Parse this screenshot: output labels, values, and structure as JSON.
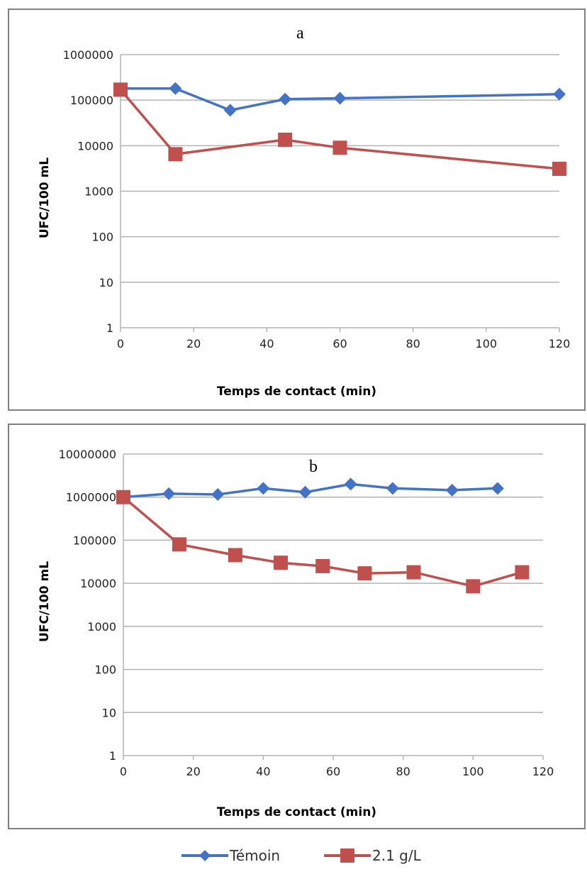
{
  "chart_data": [
    {
      "type": "line",
      "panel_label": "a",
      "title": "",
      "xlabel": "Temps de contact (min)",
      "ylabel": "UFC/100 mL",
      "y_scale": "log",
      "xlim": [
        0,
        120
      ],
      "ylim": [
        1,
        1000000
      ],
      "x_ticks": [
        "0",
        "20",
        "40",
        "60",
        "80",
        "100",
        "120"
      ],
      "y_ticks": [
        "1",
        "10",
        "100",
        "1000",
        "10000",
        "100000",
        "1000000"
      ],
      "grid": true,
      "series": [
        {
          "name": "Témoin",
          "color": "#4472C4",
          "marker": "diamond",
          "x": [
            0,
            15,
            30,
            45,
            60,
            120
          ],
          "y": [
            180000,
            180000,
            60000,
            105000,
            110000,
            135000
          ]
        },
        {
          "name": "2.1 g/L",
          "color": "#C0504D",
          "marker": "square",
          "x": [
            0,
            15,
            45,
            60,
            120
          ],
          "y": [
            170000,
            6500,
            13500,
            9000,
            3100
          ]
        }
      ]
    },
    {
      "type": "line",
      "panel_label": "b",
      "title": "",
      "xlabel": "Temps de contact (min)",
      "ylabel": "UFC/100 mL",
      "y_scale": "log",
      "xlim": [
        0,
        120
      ],
      "ylim": [
        1,
        10000000
      ],
      "x_ticks": [
        "0",
        "20",
        "40",
        "60",
        "80",
        "100",
        "120"
      ],
      "y_ticks": [
        "1",
        "10",
        "100",
        "1000",
        "10000",
        "100000",
        "1000000",
        "10000000"
      ],
      "grid": true,
      "series": [
        {
          "name": "Témoin",
          "color": "#4472C4",
          "marker": "diamond",
          "x": [
            0,
            13,
            27,
            40,
            52,
            65,
            77,
            94,
            107
          ],
          "y": [
            1000000,
            1200000,
            1150000,
            1600000,
            1300000,
            2000000,
            1600000,
            1450000,
            1600000
          ]
        },
        {
          "name": "2.1 g/L",
          "color": "#C0504D",
          "marker": "square",
          "x": [
            0,
            16,
            32,
            45,
            57,
            69,
            83,
            100,
            114
          ],
          "y": [
            1000000,
            80000,
            45000,
            30000,
            25000,
            17000,
            18000,
            8500,
            18000
          ]
        }
      ]
    }
  ],
  "legend": [
    {
      "name": "Témoin",
      "color": "#4472C4",
      "marker": "diamond"
    },
    {
      "name": "2.1 g/L",
      "color": "#C0504D",
      "marker": "square"
    }
  ]
}
